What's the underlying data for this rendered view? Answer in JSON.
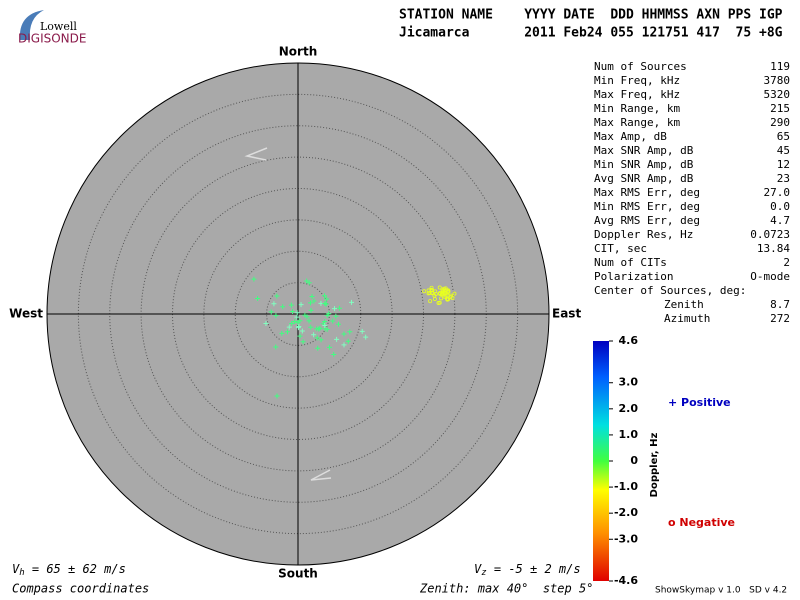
{
  "logo": {
    "top": "Lowell",
    "bottom": "DIGISONDE"
  },
  "header": {
    "row1": "STATION NAME    YYYY DATE  DDD HHMMSS AXN PPS IGP",
    "row2": "Jicamarca       2011 Feb24 055 121751 417  75 +8G"
  },
  "compass": {
    "north": "North",
    "south": "South",
    "east": "East",
    "west": "West"
  },
  "stats": [
    [
      "Num of Sources",
      "119"
    ],
    [
      "Min Freq, kHz",
      "3780"
    ],
    [
      "Max Freq, kHz",
      "5320"
    ],
    [
      "Min Range, km",
      "215"
    ],
    [
      "Max Range, km",
      "290"
    ],
    [
      "Max Amp, dB",
      "65"
    ],
    [
      "Max SNR Amp, dB",
      "45"
    ],
    [
      "Min SNR Amp, dB",
      "12"
    ],
    [
      "Avg SNR Amp, dB",
      "23"
    ],
    [
      "Max RMS Err, deg",
      "27.0"
    ],
    [
      "Min RMS Err, deg",
      "0.0"
    ],
    [
      "Avg RMS Err, deg",
      "4.7"
    ],
    [
      "Doppler Res, Hz",
      "0.0723"
    ],
    [
      "CIT, sec",
      "13.84"
    ],
    [
      "Num of CITs",
      "2"
    ],
    [
      "Polarization",
      "O-mode"
    ]
  ],
  "center": {
    "title": "Center of Sources, deg:",
    "rows": [
      [
        "Zenith",
        "8.7"
      ],
      [
        "Azimuth",
        "272"
      ]
    ]
  },
  "colorbar": {
    "title": "Doppler, Hz",
    "ticks": [
      "4.6",
      "3.0",
      "2.0",
      "1.0",
      "0",
      "-1.0",
      "-2.0",
      "-3.0",
      "-4.6"
    ]
  },
  "legend": {
    "positive": "+ Positive",
    "negative": "o Negative"
  },
  "footer": {
    "vh": [
      "V",
      "h",
      " = 65 ± 62 m/s"
    ],
    "vz": [
      "V",
      "z",
      " = -5 ± 2 m/s"
    ],
    "coords": "Compass coordinates",
    "zenith": "Zenith: max 40°  step 5°",
    "version": "ShowSkymap v 1.0   SD v 4.2"
  }
}
